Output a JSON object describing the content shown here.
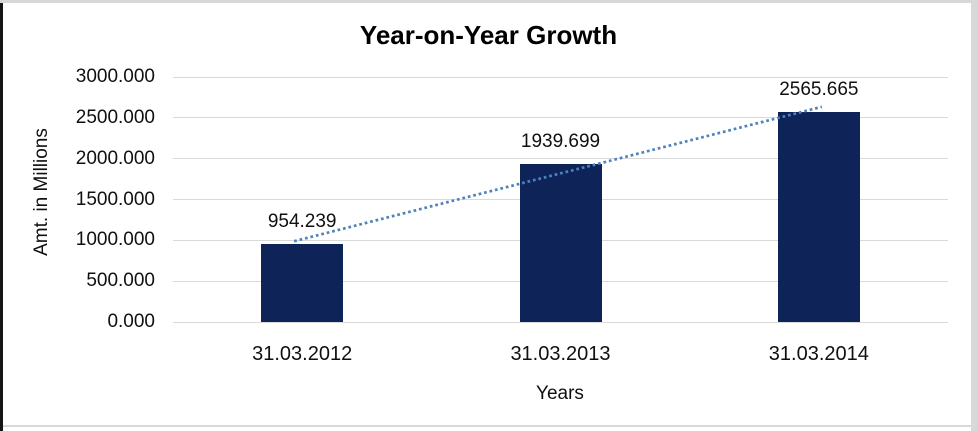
{
  "chart_data": {
    "type": "bar",
    "title": "Year-on-Year Growth",
    "xlabel": "Years",
    "ylabel": "Amt. in Millions",
    "categories": [
      "31.03.2012",
      "31.03.2013",
      "31.03.2014"
    ],
    "values": [
      954.239,
      1939.699,
      2565.665
    ],
    "data_labels": [
      "954.239",
      "1939.699",
      "2565.665"
    ],
    "ylim": [
      0,
      3000
    ],
    "ytick_step": 500,
    "ytick_labels": [
      "0.000",
      "500.000",
      "1000.000",
      "1500.000",
      "2000.000",
      "2500.000",
      "3000.000"
    ],
    "grid": true,
    "legend_position": "none",
    "bar_color": "#0e2459",
    "gridline_color": "#d9d9d9",
    "trendline": {
      "style": "dotted",
      "color": "#4f81bd",
      "v_start": 1014.2,
      "v_end": 2625.6
    }
  }
}
